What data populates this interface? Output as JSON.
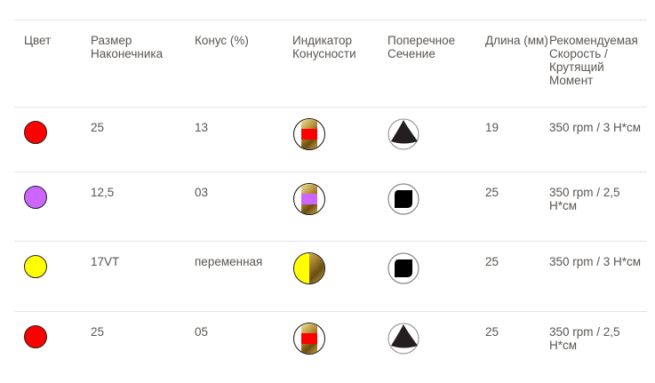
{
  "headers": [
    "Цвет",
    "Размер Наконечника",
    "Конус (%)",
    "Индикатор Конусности",
    "Поперечное Сечение",
    "Длина (мм)",
    "Рекомендуемая Скорость / Крутящий Момент"
  ],
  "rows": [
    {
      "color": "#ff0000",
      "size": "25",
      "taper": "13",
      "indicator_color": "#ff0000",
      "section": "triangle",
      "length": "19",
      "speed": "350 rpm / 3 Н*см"
    },
    {
      "color": "#cc66ff",
      "size": "12,5",
      "taper": "03",
      "indicator_color": "#cc66ff",
      "section": "square",
      "length": "25",
      "speed": "350 rpm / 2,5 Н*см"
    },
    {
      "color": "#ffff00",
      "size": "17VT",
      "taper": "переменная",
      "indicator_color": "#ffff00",
      "section": "square",
      "length": "25",
      "speed": "350 rpm / 3 Н*см"
    },
    {
      "color": "#ff0000",
      "size": "25",
      "taper": "05",
      "indicator_color": "#ff0000",
      "section": "triangle",
      "length": "25",
      "speed": "350 rpm / 2,5 Н*см"
    }
  ]
}
